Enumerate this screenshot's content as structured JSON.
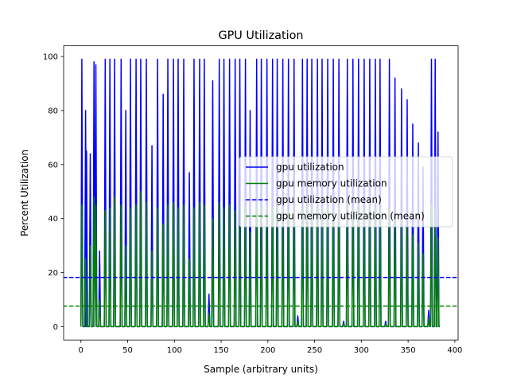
{
  "chart_data": {
    "type": "line",
    "title": "GPU Utilization",
    "xlabel": "Sample (arbitrary units)",
    "ylabel": "Percent Utilization",
    "xlim": [
      -18.5,
      403.5
    ],
    "ylim": [
      -4.95,
      103.95
    ],
    "xticks": [
      0,
      50,
      100,
      150,
      200,
      250,
      300,
      350,
      400
    ],
    "yticks": [
      0,
      20,
      40,
      60,
      80,
      100
    ],
    "grid": false,
    "legend_position": "center-right",
    "series": [
      {
        "name": "gpu utilization",
        "color": "#0000ff",
        "style": "solid",
        "spikes": [
          [
            1,
            99
          ],
          [
            5,
            80
          ],
          [
            6,
            65
          ],
          [
            10,
            64
          ],
          [
            14,
            98
          ],
          [
            16,
            97
          ],
          [
            20,
            28
          ],
          [
            26,
            99
          ],
          [
            31,
            99
          ],
          [
            36,
            99
          ],
          [
            43,
            99
          ],
          [
            48,
            80
          ],
          [
            53,
            99
          ],
          [
            59,
            99
          ],
          [
            64,
            99
          ],
          [
            70,
            99
          ],
          [
            76,
            67
          ],
          [
            82,
            99
          ],
          [
            88,
            86
          ],
          [
            93,
            99
          ],
          [
            99,
            99
          ],
          [
            104,
            99
          ],
          [
            110,
            99
          ],
          [
            116,
            57
          ],
          [
            121,
            99
          ],
          [
            127,
            99
          ],
          [
            132,
            99
          ],
          [
            137,
            12
          ],
          [
            141,
            91
          ],
          [
            148,
            99
          ],
          [
            153,
            99
          ],
          [
            159,
            99
          ],
          [
            165,
            99
          ],
          [
            170,
            99
          ],
          [
            176,
            99
          ],
          [
            181,
            80
          ],
          [
            188,
            99
          ],
          [
            193,
            99
          ],
          [
            199,
            99
          ],
          [
            205,
            99
          ],
          [
            210,
            99
          ],
          [
            216,
            99
          ],
          [
            222,
            99
          ],
          [
            228,
            99
          ],
          [
            232,
            4
          ],
          [
            237,
            99
          ],
          [
            242,
            99
          ],
          [
            247,
            99
          ],
          [
            253,
            99
          ],
          [
            258,
            99
          ],
          [
            264,
            99
          ],
          [
            270,
            99
          ],
          [
            276,
            99
          ],
          [
            281,
            2
          ],
          [
            285,
            99
          ],
          [
            291,
            99
          ],
          [
            297,
            99
          ],
          [
            303,
            99
          ],
          [
            309,
            99
          ],
          [
            315,
            99
          ],
          [
            320,
            99
          ],
          [
            326,
            2
          ],
          [
            330,
            99
          ],
          [
            336,
            92
          ],
          [
            343,
            88
          ],
          [
            349,
            84
          ],
          [
            355,
            75
          ],
          [
            361,
            68
          ],
          [
            366,
            59
          ],
          [
            372,
            6
          ],
          [
            375,
            99
          ],
          [
            379,
            99
          ],
          [
            382,
            72
          ]
        ]
      },
      {
        "name": "gpu memory utilization",
        "color": "#008000",
        "style": "solid",
        "spikes": [
          [
            1,
            45
          ],
          [
            5,
            25
          ],
          [
            10,
            30
          ],
          [
            14,
            48
          ],
          [
            16,
            45
          ],
          [
            20,
            10
          ],
          [
            26,
            43
          ],
          [
            31,
            44
          ],
          [
            36,
            48
          ],
          [
            43,
            45
          ],
          [
            48,
            30
          ],
          [
            53,
            44
          ],
          [
            59,
            45
          ],
          [
            64,
            50
          ],
          [
            70,
            46
          ],
          [
            76,
            28
          ],
          [
            82,
            44
          ],
          [
            88,
            38
          ],
          [
            93,
            45
          ],
          [
            99,
            46
          ],
          [
            104,
            44
          ],
          [
            110,
            45
          ],
          [
            116,
            25
          ],
          [
            121,
            44
          ],
          [
            127,
            46
          ],
          [
            132,
            45
          ],
          [
            137,
            5
          ],
          [
            141,
            40
          ],
          [
            148,
            46
          ],
          [
            153,
            44
          ],
          [
            159,
            45
          ],
          [
            165,
            43
          ],
          [
            170,
            45
          ],
          [
            176,
            44
          ],
          [
            181,
            35
          ],
          [
            188,
            46
          ],
          [
            193,
            44
          ],
          [
            199,
            45
          ],
          [
            205,
            44
          ],
          [
            210,
            45
          ],
          [
            216,
            44
          ],
          [
            222,
            43
          ],
          [
            228,
            45
          ],
          [
            232,
            2
          ],
          [
            237,
            44
          ],
          [
            242,
            45
          ],
          [
            247,
            44
          ],
          [
            253,
            45
          ],
          [
            258,
            44
          ],
          [
            264,
            45
          ],
          [
            270,
            43
          ],
          [
            276,
            44
          ],
          [
            281,
            1
          ],
          [
            285,
            45
          ],
          [
            291,
            44
          ],
          [
            297,
            45
          ],
          [
            303,
            44
          ],
          [
            309,
            45
          ],
          [
            315,
            44
          ],
          [
            320,
            43
          ],
          [
            326,
            1
          ],
          [
            330,
            44
          ],
          [
            336,
            40
          ],
          [
            343,
            39
          ],
          [
            349,
            37
          ],
          [
            355,
            34
          ],
          [
            361,
            31
          ],
          [
            366,
            27
          ],
          [
            372,
            3
          ],
          [
            375,
            45
          ],
          [
            379,
            44
          ],
          [
            382,
            33
          ]
        ]
      },
      {
        "name": "gpu utilization (mean)",
        "color": "#0000ff",
        "style": "dashed",
        "value": 18.2
      },
      {
        "name": "gpu memory utilization (mean)",
        "color": "#008000",
        "style": "dashed",
        "value": 7.6
      }
    ]
  }
}
